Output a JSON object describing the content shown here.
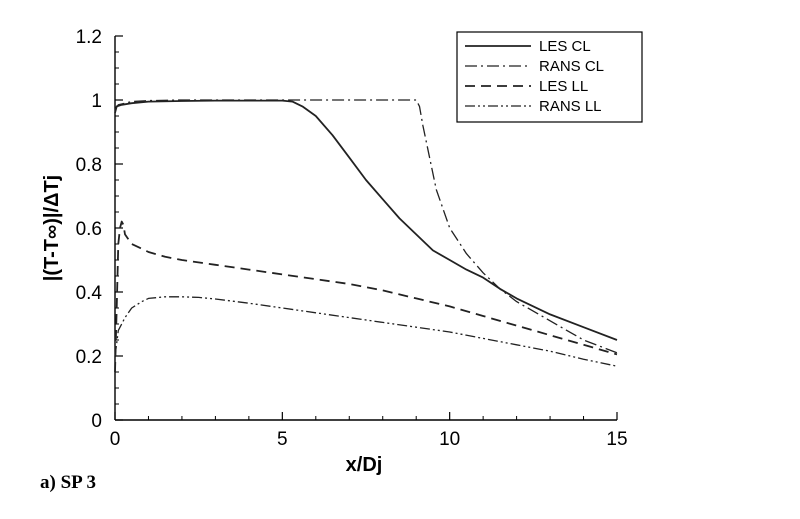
{
  "caption": "a) SP 3",
  "chart_data": {
    "type": "line",
    "xlabel": "x/Dj",
    "ylabel": "|(T-T∞)|/ΔTj",
    "xlim": [
      0,
      15
    ],
    "ylim": [
      0,
      1.2
    ],
    "xticks": [
      0,
      5,
      10,
      15
    ],
    "yticks": [
      0,
      0.2,
      0.4,
      0.6,
      0.8,
      1,
      1.2
    ],
    "xtick_labels": [
      "0",
      "5",
      "10",
      "15"
    ],
    "ytick_labels": [
      "0",
      "0.2",
      "0.4",
      "0.6",
      "0.8",
      "1",
      "1.2"
    ],
    "grid": false,
    "legend_position": "top-right",
    "series": [
      {
        "name": "LES CL",
        "style": "solid",
        "x": [
          0,
          0.05,
          0.2,
          0.5,
          1,
          2,
          3,
          4,
          5,
          5.3,
          5.6,
          6,
          6.5,
          7,
          7.5,
          8,
          8.5,
          9,
          9.5,
          10,
          10.5,
          11,
          11.5,
          12,
          13,
          14,
          15
        ],
        "y": [
          0.96,
          0.98,
          0.985,
          0.99,
          0.995,
          0.997,
          0.998,
          0.998,
          0.998,
          0.995,
          0.98,
          0.95,
          0.89,
          0.82,
          0.75,
          0.69,
          0.63,
          0.58,
          0.53,
          0.5,
          0.47,
          0.445,
          0.41,
          0.38,
          0.33,
          0.29,
          0.25
        ]
      },
      {
        "name": "RANS CL",
        "style": "dashdot",
        "x": [
          0,
          0.1,
          0.5,
          1,
          2,
          3,
          4,
          5,
          6,
          7,
          8,
          8.5,
          9,
          9.1,
          9.2,
          9.4,
          9.6,
          10,
          10.5,
          11,
          11.5,
          12,
          13,
          14,
          15
        ],
        "y": [
          0.97,
          0.985,
          0.995,
          0.998,
          1,
          1,
          1,
          1,
          1,
          1,
          1,
          1,
          1,
          0.98,
          0.92,
          0.82,
          0.72,
          0.6,
          0.52,
          0.46,
          0.41,
          0.37,
          0.31,
          0.25,
          0.21
        ]
      },
      {
        "name": "LES LL",
        "style": "dashed",
        "x": [
          0,
          0.05,
          0.1,
          0.15,
          0.2,
          0.25,
          0.3,
          0.5,
          0.8,
          1,
          1.5,
          2,
          3,
          4,
          5,
          6,
          7,
          8,
          9,
          10,
          11,
          12,
          13,
          14,
          15
        ],
        "y": [
          0.15,
          0.35,
          0.55,
          0.6,
          0.62,
          0.61,
          0.58,
          0.55,
          0.535,
          0.525,
          0.51,
          0.5,
          0.485,
          0.47,
          0.455,
          0.44,
          0.425,
          0.405,
          0.38,
          0.355,
          0.325,
          0.295,
          0.265,
          0.235,
          0.205
        ]
      },
      {
        "name": "RANS LL",
        "style": "dashdotdot",
        "x": [
          0,
          0.05,
          0.1,
          0.2,
          0.3,
          0.5,
          0.8,
          1,
          1.5,
          2,
          2.5,
          3,
          4,
          5,
          6,
          7,
          8,
          9,
          10,
          11,
          12,
          13,
          14,
          15
        ],
        "y": [
          0.2,
          0.24,
          0.28,
          0.3,
          0.32,
          0.35,
          0.37,
          0.38,
          0.385,
          0.385,
          0.383,
          0.378,
          0.365,
          0.35,
          0.335,
          0.32,
          0.305,
          0.29,
          0.275,
          0.255,
          0.235,
          0.215,
          0.19,
          0.168
        ]
      }
    ]
  }
}
